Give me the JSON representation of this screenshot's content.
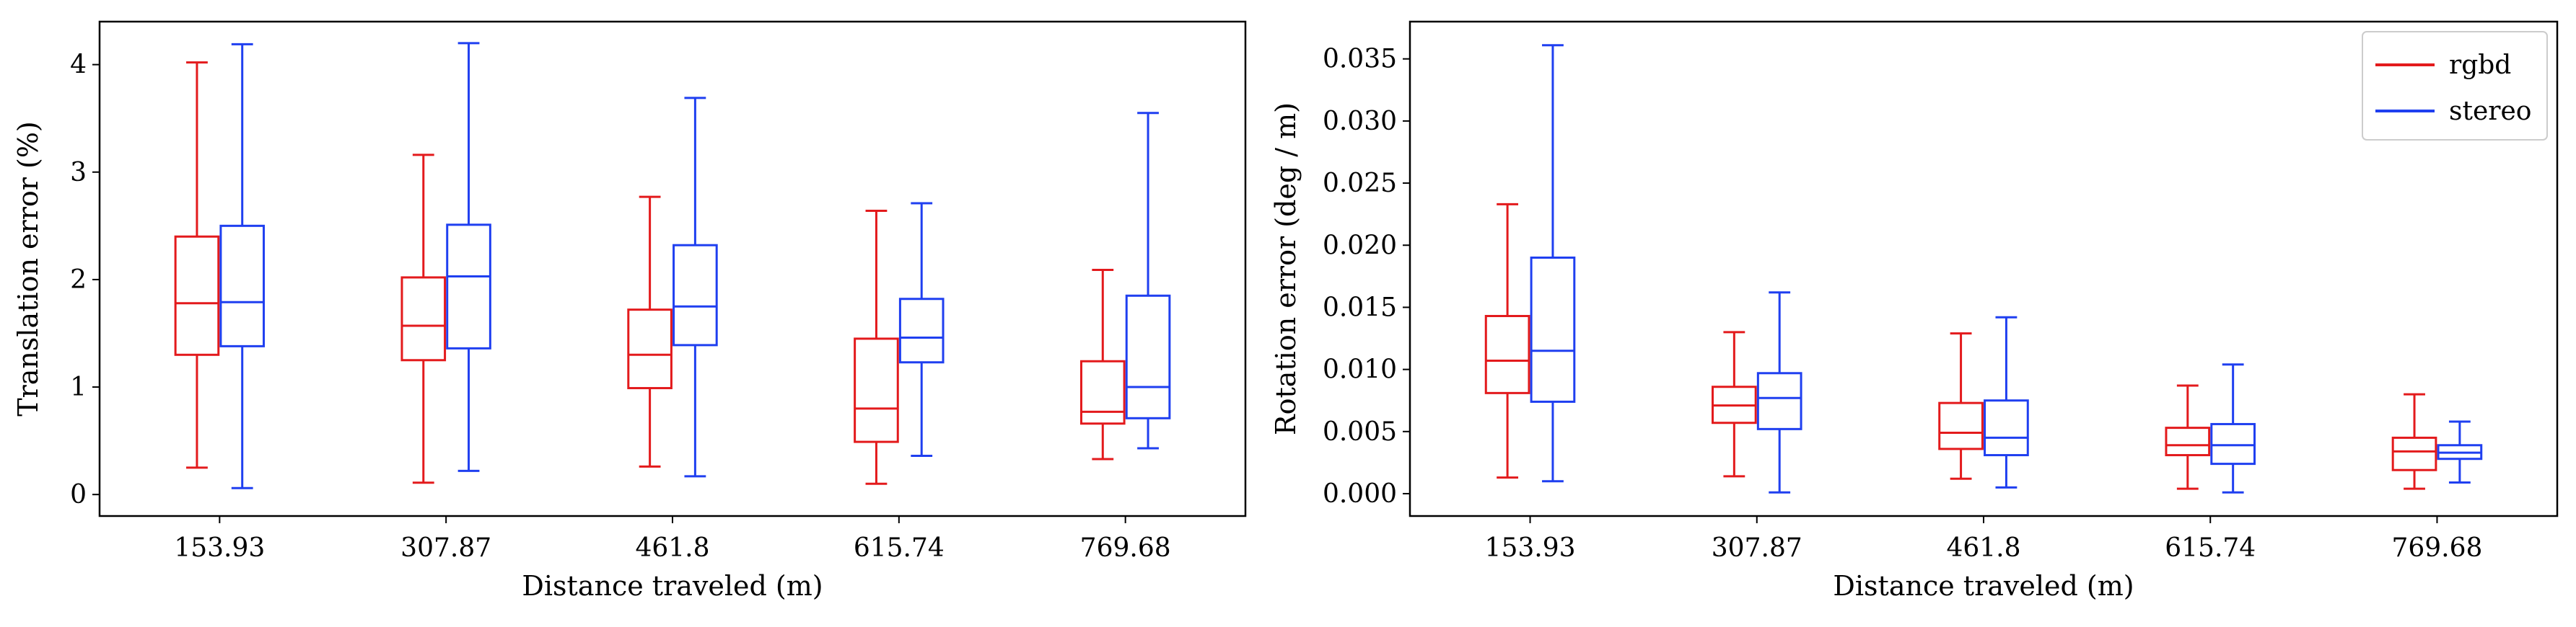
{
  "chart_data": [
    {
      "type": "box",
      "xlabel": "Distance traveled (m)",
      "ylabel": "Translation error (%)",
      "categories": [
        "153.93",
        "307.87",
        "461.8",
        "615.74",
        "769.68"
      ],
      "ylim": [
        -0.2,
        4.4
      ],
      "yticks": [
        "0",
        "1",
        "2",
        "3",
        "4"
      ],
      "ytick_values": [
        0,
        1,
        2,
        3,
        4
      ],
      "grid": false,
      "series": [
        {
          "name": "rgbd",
          "color": "#e31a1c",
          "boxes": [
            {
              "whislo": 0.25,
              "q1": 1.3,
              "med": 1.78,
              "q3": 2.4,
              "whishi": 4.02
            },
            {
              "whislo": 0.11,
              "q1": 1.25,
              "med": 1.57,
              "q3": 2.02,
              "whishi": 3.16
            },
            {
              "whislo": 0.26,
              "q1": 0.99,
              "med": 1.3,
              "q3": 1.72,
              "whishi": 2.77
            },
            {
              "whislo": 0.1,
              "q1": 0.49,
              "med": 0.8,
              "q3": 1.45,
              "whishi": 2.64
            },
            {
              "whislo": 0.33,
              "q1": 0.66,
              "med": 0.77,
              "q3": 1.24,
              "whishi": 2.09
            }
          ]
        },
        {
          "name": "stereo",
          "color": "#1f3ff0",
          "boxes": [
            {
              "whislo": 0.06,
              "q1": 1.38,
              "med": 1.79,
              "q3": 2.5,
              "whishi": 4.19
            },
            {
              "whislo": 0.22,
              "q1": 1.36,
              "med": 2.03,
              "q3": 2.51,
              "whishi": 4.2
            },
            {
              "whislo": 0.17,
              "q1": 1.39,
              "med": 1.75,
              "q3": 2.32,
              "whishi": 3.69
            },
            {
              "whislo": 0.36,
              "q1": 1.23,
              "med": 1.46,
              "q3": 1.82,
              "whishi": 2.71
            },
            {
              "whislo": 0.43,
              "q1": 0.71,
              "med": 1.0,
              "q3": 1.85,
              "whishi": 3.55
            }
          ]
        }
      ]
    },
    {
      "type": "box",
      "xlabel": "Distance traveled (m)",
      "ylabel": "Rotation error (deg / m)",
      "categories": [
        "153.93",
        "307.87",
        "461.8",
        "615.74",
        "769.68"
      ],
      "ylim": [
        -0.0018,
        0.038
      ],
      "yticks": [
        "0.000",
        "0.005",
        "0.010",
        "0.015",
        "0.020",
        "0.025",
        "0.030",
        "0.035"
      ],
      "ytick_values": [
        0,
        0.005,
        0.01,
        0.015,
        0.02,
        0.025,
        0.03,
        0.035
      ],
      "grid": false,
      "legend": {
        "position": "top-right",
        "entries": [
          "rgbd",
          "stereo"
        ]
      },
      "series": [
        {
          "name": "rgbd",
          "color": "#e31a1c",
          "boxes": [
            {
              "whislo": 0.0013,
              "q1": 0.0081,
              "med": 0.0107,
              "q3": 0.0143,
              "whishi": 0.0233
            },
            {
              "whislo": 0.0014,
              "q1": 0.0057,
              "med": 0.0071,
              "q3": 0.0086,
              "whishi": 0.013
            },
            {
              "whislo": 0.0012,
              "q1": 0.0036,
              "med": 0.0049,
              "q3": 0.0073,
              "whishi": 0.0129
            },
            {
              "whislo": 0.0004,
              "q1": 0.0031,
              "med": 0.0039,
              "q3": 0.0053,
              "whishi": 0.0087
            },
            {
              "whislo": 0.0004,
              "q1": 0.0019,
              "med": 0.0034,
              "q3": 0.0045,
              "whishi": 0.008
            }
          ]
        },
        {
          "name": "stereo",
          "color": "#1f3ff0",
          "boxes": [
            {
              "whislo": 0.001,
              "q1": 0.0074,
              "med": 0.0115,
              "q3": 0.019,
              "whishi": 0.0361
            },
            {
              "whislo": 0.0001,
              "q1": 0.0052,
              "med": 0.0077,
              "q3": 0.0097,
              "whishi": 0.0162
            },
            {
              "whislo": 0.0005,
              "q1": 0.0031,
              "med": 0.0045,
              "q3": 0.0075,
              "whishi": 0.0142
            },
            {
              "whislo": 0.0001,
              "q1": 0.0024,
              "med": 0.0039,
              "q3": 0.0056,
              "whishi": 0.0104
            },
            {
              "whislo": 0.0009,
              "q1": 0.0028,
              "med": 0.0033,
              "q3": 0.0039,
              "whishi": 0.0058
            }
          ]
        }
      ]
    }
  ]
}
